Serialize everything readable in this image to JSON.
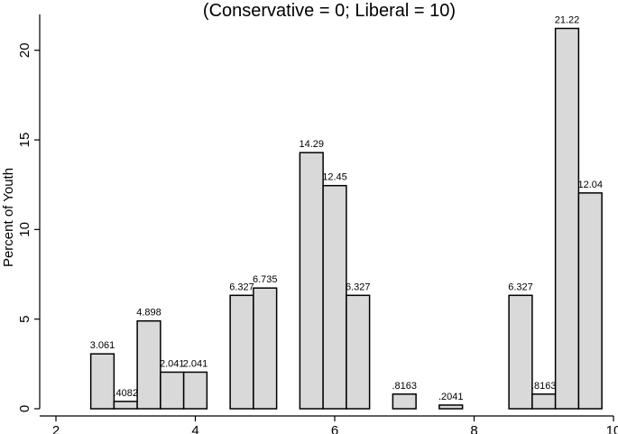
{
  "chart_data": {
    "type": "bar",
    "title": "(Conservative = 0; Liberal = 10)",
    "ylabel": "Percent of Youth",
    "xlabel": "",
    "xlim": [
      2,
      10
    ],
    "ylim": [
      0,
      22
    ],
    "xticks": [
      2,
      4,
      6,
      8,
      10
    ],
    "yticks": [
      0,
      5,
      10,
      15,
      20
    ],
    "bar_width": 0.3333,
    "grid": false,
    "bars": [
      {
        "x": 2.6667,
        "value": 3.061,
        "label": "3.061"
      },
      {
        "x": 3.0,
        "value": 0.4082,
        "label": ".4082"
      },
      {
        "x": 3.3333,
        "value": 4.898,
        "label": "4.898"
      },
      {
        "x": 3.6667,
        "value": 2.041,
        "label": "2.041"
      },
      {
        "x": 4.0,
        "value": 2.041,
        "label": "2.041"
      },
      {
        "x": 4.6667,
        "value": 6.327,
        "label": "6.327"
      },
      {
        "x": 5.0,
        "value": 6.735,
        "label": "6.735"
      },
      {
        "x": 5.6667,
        "value": 14.29,
        "label": "14.29"
      },
      {
        "x": 6.0,
        "value": 12.45,
        "label": "12.45"
      },
      {
        "x": 6.3333,
        "value": 6.327,
        "label": "6.327"
      },
      {
        "x": 7.0,
        "value": 0.8163,
        "label": ".8163"
      },
      {
        "x": 7.6667,
        "value": 0.2041,
        "label": ".2041"
      },
      {
        "x": 8.6667,
        "value": 6.327,
        "label": "6.327"
      },
      {
        "x": 9.0,
        "value": 0.8163,
        "label": ".8163"
      },
      {
        "x": 9.3333,
        "value": 21.22,
        "label": "21.22"
      },
      {
        "x": 9.6667,
        "value": 12.04,
        "label": "12.04"
      }
    ]
  }
}
